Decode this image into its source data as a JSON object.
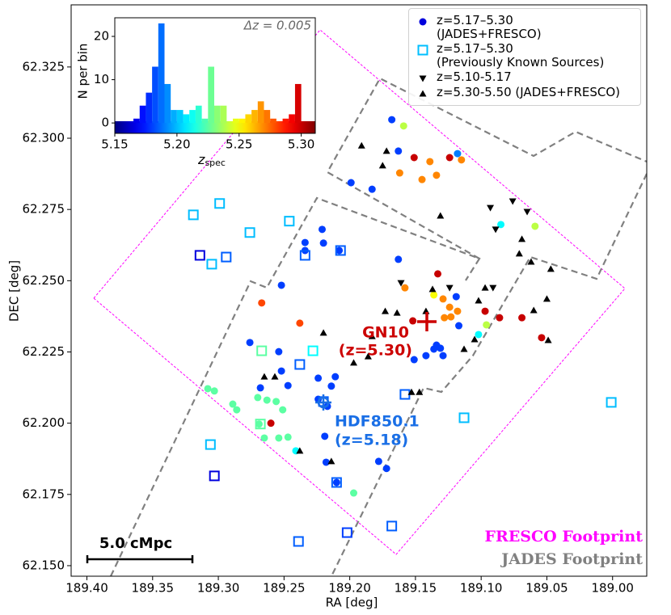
{
  "chart_data": [
    {
      "type": "scatter",
      "xlabel": "RA [deg]",
      "ylabel": "DEC [deg]",
      "xlim": [
        189.412,
        188.974
      ],
      "ylim": [
        62.1463,
        62.3468
      ],
      "xticks": [
        {
          "value": 189.4,
          "label": "189.40"
        },
        189.35,
        {
          "value": 189.3,
          "label": "189.30"
        },
        189.25,
        {
          "value": 189.2,
          "label": "189.20"
        },
        189.15,
        {
          "value": 189.1,
          "label": "189.10"
        },
        189.05,
        {
          "value": 189.0,
          "label": "189.00"
        }
      ],
      "yticks": [
        {
          "value": 62.15,
          "label": "62.150"
        },
        62.175,
        {
          "value": 62.2,
          "label": "62.200"
        },
        62.225,
        {
          "value": 62.25,
          "label": "62.250"
        },
        62.275,
        {
          "value": 62.3,
          "label": "62.300"
        },
        62.325
      ],
      "legend": "upper right",
      "series": [
        {
          "name": "z=5.17–5.30\n(JADES+FRESCO)",
          "marker": "circle",
          "color": "#0000dd",
          "x": [
            189.168,
            189.159,
            189.163,
            189.151,
            189.124,
            189.118,
            189.115,
            189.139,
            189.162,
            189.145,
            189.134,
            189.199,
            189.183,
            189.085,
            189.059,
            189.221,
            189.234,
            189.22,
            189.234,
            189.208,
            189.163,
            189.252,
            189.133,
            189.158,
            189.136,
            189.129,
            189.119,
            189.124,
            189.118,
            189.128,
            189.123,
            189.117,
            189.267,
            189.238,
            189.152,
            189.097,
            189.086,
            189.069,
            189.096,
            189.102,
            189.054,
            189.134,
            189.131,
            189.136,
            189.142,
            189.151,
            189.129,
            189.276,
            189.254,
            189.252,
            189.224,
            189.214,
            189.211,
            189.224,
            189.217,
            189.268,
            189.247,
            189.308,
            189.303,
            189.289,
            189.286,
            189.27,
            189.263,
            189.256,
            189.251,
            189.269,
            189.26,
            189.265,
            189.254,
            189.247,
            189.219,
            189.241,
            189.218,
            189.178,
            189.172,
            189.21,
            189.197
          ],
          "y": [
            62.3065,
            62.3043,
            62.2955,
            62.2932,
            62.2932,
            62.2946,
            62.2924,
            62.2918,
            62.2878,
            62.2855,
            62.287,
            62.2844,
            62.2821,
            62.2697,
            62.2691,
            62.268,
            62.2634,
            62.2632,
            62.2606,
            62.2606,
            62.2575,
            62.2484,
            62.2524,
            62.2475,
            62.245,
            62.2436,
            62.2444,
            62.2407,
            62.2393,
            62.237,
            62.2373,
            62.2342,
            62.2422,
            62.2351,
            62.2359,
            62.2393,
            62.237,
            62.237,
            62.2345,
            62.2311,
            62.23,
            62.2274,
            62.2263,
            62.226,
            62.2237,
            62.2223,
            62.2237,
            62.2283,
            62.2251,
            62.2183,
            62.2158,
            62.213,
            62.2163,
            62.2084,
            62.2059,
            62.2124,
            62.2132,
            62.2121,
            62.2113,
            62.2067,
            62.2047,
            62.209,
            62.2081,
            62.2076,
            62.2047,
            62.1997,
            62.2,
            62.1948,
            62.1948,
            62.1951,
            62.1954,
            62.1903,
            62.1863,
            62.1866,
            62.1841,
            62.1792,
            62.1755
          ],
          "z": [
            5.18,
            5.24,
            5.18,
            5.3,
            5.3,
            5.19,
            5.27,
            5.27,
            5.27,
            5.27,
            5.27,
            5.18,
            5.18,
            5.21,
            5.24,
            5.18,
            5.18,
            5.18,
            5.18,
            5.18,
            5.18,
            5.18,
            5.3,
            5.27,
            5.25,
            5.27,
            5.18,
            5.27,
            5.27,
            5.27,
            5.27,
            5.18,
            5.28,
            5.28,
            5.3,
            5.3,
            5.3,
            5.3,
            5.24,
            5.21,
            5.3,
            5.18,
            5.18,
            5.18,
            5.18,
            5.18,
            5.18,
            5.18,
            5.18,
            5.18,
            5.18,
            5.18,
            5.18,
            5.18,
            5.18,
            5.18,
            5.18,
            5.225,
            5.225,
            5.225,
            5.225,
            5.225,
            5.225,
            5.225,
            5.225,
            5.225,
            5.3,
            5.225,
            5.225,
            5.225,
            5.18,
            5.21,
            5.18,
            5.18,
            5.18,
            5.18,
            5.225
          ]
        },
        {
          "name": "z=5.17–5.30\n(Previously Known Sources)",
          "marker": "square",
          "color": "#00bfff",
          "x": [
            189.319,
            189.299,
            189.276,
            189.246,
            189.314,
            189.305,
            189.294,
            189.234,
            189.207,
            189.267,
            189.238,
            189.228,
            189.22,
            189.158,
            189.268,
            189.306,
            189.113,
            189.303,
            189.21,
            189.001,
            189.239,
            189.202,
            189.168
          ],
          "y": [
            62.2731,
            62.2771,
            62.2669,
            62.2709,
            62.2589,
            62.2558,
            62.2583,
            62.2589,
            62.2606,
            62.2254,
            62.2206,
            62.2254,
            62.2076,
            62.2101,
            62.1997,
            62.1925,
            62.2019,
            62.1815,
            62.1792,
            62.2073,
            62.1585,
            62.1616,
            62.1639
          ],
          "z": [
            5.2,
            5.2,
            5.2,
            5.2,
            5.165,
            5.2,
            5.185,
            5.185,
            5.185,
            5.225,
            5.185,
            5.21,
            5.185,
            5.185,
            5.225,
            5.2,
            5.2,
            5.165,
            5.185,
            5.2,
            5.185,
            5.18,
            5.185
          ]
        },
        {
          "name": "z=5.10-5.17",
          "marker": "triangle-down",
          "color": "#000000",
          "x": [
            189.076,
            189.093,
            189.065,
            189.089,
            189.161,
            189.124,
            189.091
          ],
          "y": [
            62.2779,
            62.2756,
            62.2742,
            62.268,
            62.2492,
            62.2475,
            62.2475
          ]
        },
        {
          "name": "z=5.30-5.50 (JADES+FRESCO)",
          "marker": "triangle-up",
          "color": "#000000",
          "x": [
            189.191,
            189.172,
            189.175,
            189.131,
            189.069,
            189.071,
            189.062,
            189.047,
            189.097,
            189.137,
            189.102,
            189.06,
            189.05,
            189.173,
            189.164,
            189.142,
            189.22,
            189.183,
            189.105,
            189.049,
            189.113,
            189.197,
            189.186,
            189.265,
            189.257,
            189.153,
            189.147,
            189.238,
            189.214
          ],
          "y": [
            62.2974,
            62.2955,
            62.2904,
            62.2728,
            62.2646,
            62.2595,
            62.2566,
            62.2541,
            62.2475,
            62.247,
            62.243,
            62.2396,
            62.2436,
            62.2393,
            62.2387,
            62.2393,
            62.2317,
            62.2305,
            62.2294,
            62.2291,
            62.226,
            62.2212,
            62.2234,
            62.2163,
            62.2163,
            62.2109,
            62.2109,
            62.1903,
            62.1866
          ]
        }
      ],
      "annotations": [
        "GN10",
        "(z=5.30)",
        "HDF850.1",
        "(z=5.18)",
        "5.0 cMpc",
        "FRESCO Footprint",
        "JADES Footprint"
      ]
    },
    {
      "type": "histogram",
      "colormap": "jet",
      "bins": [
        5.165,
        5.17,
        5.175,
        5.18,
        5.185,
        5.19,
        5.195,
        5.2,
        5.205,
        5.21,
        5.215,
        5.22,
        5.225,
        5.23,
        5.235,
        5.24,
        5.245,
        5.25,
        5.255,
        5.26,
        5.265,
        5.27,
        5.275,
        5.28,
        5.285,
        5.29,
        5.295,
        5.3
      ],
      "counts": [
        1,
        4,
        7,
        13,
        23,
        9,
        3,
        3,
        2,
        3,
        4,
        1,
        13,
        4,
        4,
        0,
        1,
        1,
        2,
        3,
        5,
        3,
        1,
        0,
        1,
        2,
        9
      ],
      "xlim": [
        5.15,
        5.3113
      ],
      "ylim": [
        -2.4,
        24.3
      ],
      "xticks": [
        5.15,
        {
          "value": 5.2,
          "label": "5.20"
        },
        5.25,
        {
          "value": 5.3,
          "label": "5.30"
        }
      ],
      "yticks": [
        0,
        10,
        20
      ],
      "xlabel": [
        "z",
        "spec"
      ],
      "ylabel": "N per bin",
      "annotation": "Δz = 0.005"
    }
  ]
}
